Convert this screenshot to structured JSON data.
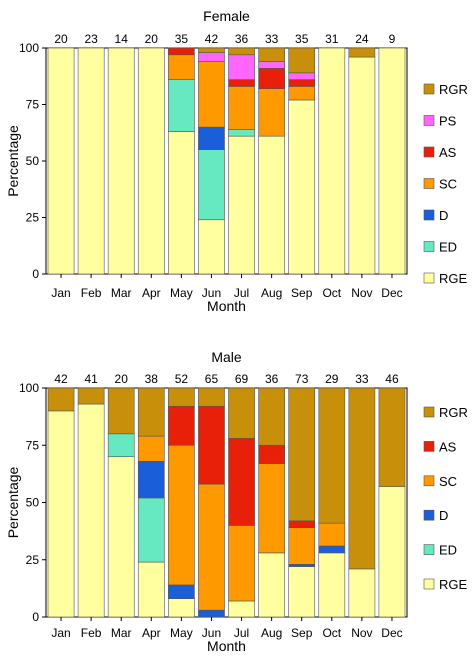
{
  "colors": {
    "RGR": "#C8900A",
    "PS": "#FF66FF",
    "AS": "#E8200A",
    "SC": "#FF9900",
    "D": "#1A5FD9",
    "ED": "#66E8C0",
    "RGE": "#FFFFA0"
  },
  "chart_data": [
    {
      "type": "bar",
      "stacked": true,
      "title": "Female",
      "xlabel": "Month",
      "ylabel": "Percentage",
      "ylim": [
        0,
        100
      ],
      "yticks": [
        "0",
        "25",
        "50",
        "75",
        "100"
      ],
      "categories": [
        "Jan",
        "Feb",
        "Mar",
        "Apr",
        "May",
        "Jun",
        "Jul",
        "Aug",
        "Sep",
        "Oct",
        "Nov",
        "Dec"
      ],
      "counts": [
        "20",
        "23",
        "14",
        "20",
        "35",
        "42",
        "36",
        "33",
        "35",
        "31",
        "24",
        "9"
      ],
      "legend": [
        "RGR",
        "PS",
        "AS",
        "SC",
        "D",
        "ED",
        "RGE"
      ],
      "legend_placement": "right",
      "series": [
        {
          "name": "RGE",
          "values": [
            100,
            100,
            100,
            100,
            63,
            24,
            61,
            61,
            77,
            100,
            96,
            100
          ]
        },
        {
          "name": "ED",
          "values": [
            0,
            0,
            0,
            0,
            23,
            31,
            3,
            0,
            0,
            0,
            0,
            0
          ]
        },
        {
          "name": "D",
          "values": [
            0,
            0,
            0,
            0,
            0,
            10,
            0,
            0,
            0,
            0,
            0,
            0
          ]
        },
        {
          "name": "SC",
          "values": [
            0,
            0,
            0,
            0,
            11,
            29,
            19,
            21,
            6,
            0,
            0,
            0
          ]
        },
        {
          "name": "AS",
          "values": [
            0,
            0,
            0,
            0,
            3,
            0,
            3,
            9,
            3,
            0,
            0,
            0
          ]
        },
        {
          "name": "PS",
          "values": [
            0,
            0,
            0,
            0,
            0,
            4,
            11,
            3,
            3,
            0,
            0,
            0
          ]
        },
        {
          "name": "RGR",
          "values": [
            0,
            0,
            0,
            0,
            0,
            2,
            3,
            6,
            11,
            0,
            4,
            0
          ]
        }
      ]
    },
    {
      "type": "bar",
      "stacked": true,
      "title": "Male",
      "xlabel": "Month",
      "ylabel": "Percentage",
      "ylim": [
        0,
        100
      ],
      "yticks": [
        "0",
        "25",
        "50",
        "75",
        "100"
      ],
      "categories": [
        "Jan",
        "Feb",
        "Mar",
        "Apr",
        "May",
        "Jun",
        "Jul",
        "Aug",
        "Sep",
        "Oct",
        "Nov",
        "Dec"
      ],
      "counts": [
        "42",
        "41",
        "20",
        "38",
        "52",
        "65",
        "69",
        "36",
        "73",
        "29",
        "33",
        "46"
      ],
      "legend": [
        "RGR",
        "AS",
        "SC",
        "D",
        "ED",
        "RGE"
      ],
      "legend_placement": "right",
      "series": [
        {
          "name": "RGE",
          "values": [
            90,
            93,
            70,
            24,
            8,
            0,
            7,
            28,
            22,
            28,
            21,
            57
          ]
        },
        {
          "name": "ED",
          "values": [
            0,
            0,
            10,
            28,
            0,
            0,
            0,
            0,
            0,
            0,
            0,
            0
          ]
        },
        {
          "name": "D",
          "values": [
            0,
            0,
            0,
            16,
            6,
            3,
            0,
            0,
            1,
            3,
            0,
            0
          ]
        },
        {
          "name": "SC",
          "values": [
            0,
            0,
            0,
            11,
            61,
            55,
            33,
            39,
            16,
            10,
            0,
            0
          ]
        },
        {
          "name": "AS",
          "values": [
            0,
            0,
            0,
            0,
            17,
            34,
            38,
            8,
            3,
            0,
            0,
            0
          ]
        },
        {
          "name": "RGR",
          "values": [
            10,
            7,
            20,
            21,
            8,
            8,
            22,
            25,
            58,
            59,
            79,
            43
          ]
        }
      ]
    }
  ]
}
